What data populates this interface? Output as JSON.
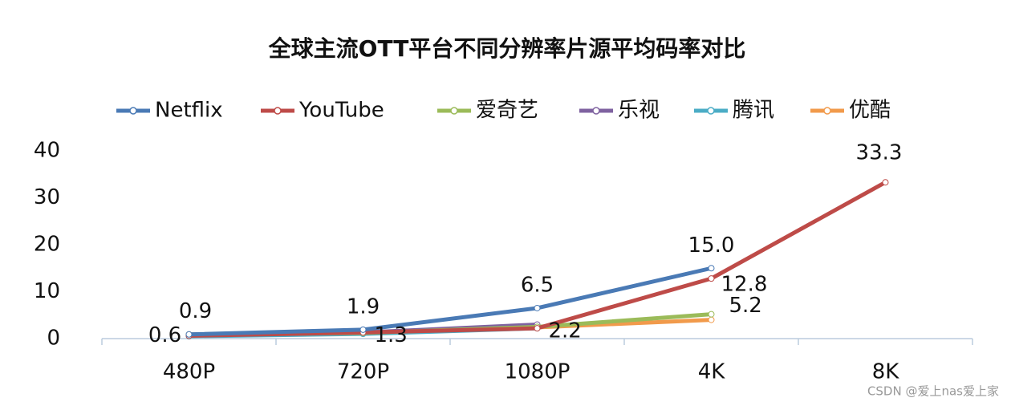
{
  "chart_data": {
    "type": "line",
    "title": "全球主流OTT平台不同分辨率片源平均码率对比",
    "categories": [
      "480P",
      "720P",
      "1080P",
      "4K",
      "8K"
    ],
    "series": [
      {
        "name": "Netflix",
        "color": "#4a7ab5",
        "values": [
          0.9,
          1.9,
          6.5,
          15.0,
          null
        ],
        "value_labels": [
          "0.9",
          "1.9",
          "6.5",
          "15.0",
          null
        ]
      },
      {
        "name": "YouTube",
        "color": "#be4b48",
        "values": [
          0.6,
          1.3,
          2.2,
          12.8,
          33.3
        ],
        "value_labels": [
          "0.6",
          "1.3",
          "2.2",
          "12.8",
          "33.3"
        ]
      },
      {
        "name": "爱奇艺",
        "color": "#9bbb59",
        "values": [
          0.8,
          1.2,
          2.5,
          5.2,
          null
        ],
        "value_labels": [
          null,
          null,
          null,
          "5.2",
          null
        ]
      },
      {
        "name": "乐视",
        "color": "#7f62a0",
        "values": [
          0.8,
          1.3,
          3.0,
          null,
          null
        ]
      },
      {
        "name": "腾讯",
        "color": "#4bacc6",
        "values": [
          0.5,
          1.0,
          2.2,
          null,
          null
        ]
      },
      {
        "name": "优酷",
        "color": "#f19a4b",
        "values": [
          0.9,
          1.3,
          2.4,
          4.0,
          null
        ]
      }
    ],
    "ylim": [
      0,
      40
    ],
    "yticks": [
      0,
      10,
      20,
      30,
      40
    ],
    "legend": "top",
    "watermark": "CSDN @爱上nas爱上家"
  }
}
